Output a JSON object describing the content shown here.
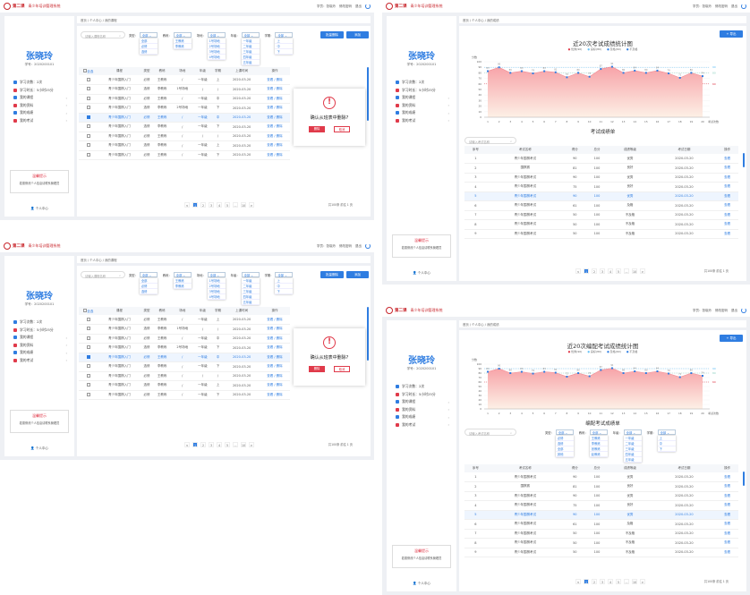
{
  "app": {
    "system_name": "青少年培训管理系统",
    "logo_text": "第二课",
    "header_links": [
      "学员：张晓玲",
      "修改密码",
      "退出"
    ]
  },
  "user": {
    "name": "张晓玲",
    "id_label": "学号：2020200101"
  },
  "sidebar": {
    "items": [
      {
        "label": "学习次数：2次",
        "color": "#2f7de1"
      },
      {
        "label": "学习时长：5小时25分",
        "color": "#e03a4a"
      },
      {
        "label": "我的课程",
        "color": "#2f7de1"
      },
      {
        "label": "我的资料",
        "color": "#e03a4a"
      },
      {
        "label": "我的成绩",
        "color": "#2f7de1"
      },
      {
        "label": "我的考试",
        "color": "#e03a4a"
      }
    ],
    "notice_title": "温馨提示",
    "notice_text": "若需修改个人信息请联系管理员",
    "personal_center": "个人中心"
  },
  "course_page": {
    "breadcrumb": "首页 / 个人中心 / 我的课程",
    "search_placeholder": "请输入课程名称",
    "filters": [
      {
        "label": "类型：",
        "value": "全部",
        "options": [
          "全部",
          "必修",
          "选修"
        ]
      },
      {
        "label": "教练：",
        "value": "全部",
        "options": [
          "王教练",
          "李教练"
        ]
      },
      {
        "label": "场地：",
        "value": "全部",
        "options": [
          "1号场地",
          "2号场地",
          "3号场地",
          "4号场地"
        ]
      },
      {
        "label": "年级：",
        "value": "全部",
        "options": [
          "一年级",
          "二年级",
          "三年级",
          "四年级",
          "五年级"
        ]
      },
      {
        "label": "学期：",
        "value": "全部",
        "options": [
          "上",
          "中",
          "下"
        ]
      }
    ],
    "buttons": [
      "批量删除",
      "添加"
    ],
    "columns": [
      "全选",
      "课程",
      "类型",
      "教练",
      "场地",
      "年级",
      "学期",
      "上课时间",
      "操作"
    ],
    "rows": [
      [
        "青少年围棋入门",
        "必修",
        "王教练",
        "/",
        "一年级",
        "上",
        "2020-03-20",
        "查看 / 删除"
      ],
      [
        "青少年围棋入门",
        "选修",
        "李教练",
        "1号场地",
        "/",
        "/",
        "2020-03-20",
        "查看 / 删除"
      ],
      [
        "青少年围棋入门",
        "必修",
        "王教练",
        "/",
        "一年级",
        "中",
        "2020-03-20",
        "查看 / 删除"
      ],
      [
        "青少年围棋入门",
        "选修",
        "李教练",
        "2号场地",
        "一年级",
        "下",
        "2020-03-20",
        "查看 / 删除"
      ],
      [
        "青少年围棋入门",
        "必修",
        "王教练",
        "/",
        "一年级",
        "中",
        "2020-03-20",
        "查看 / 删除"
      ],
      [
        "青少年围棋入门",
        "选修",
        "李教练",
        "/",
        "一年级",
        "下",
        "2020-03-20",
        "查看 / 删除"
      ],
      [
        "青少年围棋入门",
        "必修",
        "王教练",
        "/",
        "/",
        "/",
        "2020-03-20",
        "查看 / 删除"
      ],
      [
        "青少年围棋入门",
        "选修",
        "李教练",
        "/",
        "一年级",
        "上",
        "2020-03-20",
        "查看 / 删除"
      ],
      [
        "青少年围棋入门",
        "必修",
        "王教练",
        "/",
        "一年级",
        "下",
        "2020-03-20",
        "查看 / 删除"
      ]
    ],
    "selected_row": 4,
    "modal": {
      "question": "确认从班表中删除?",
      "confirm": "删除",
      "cancel": "取消"
    },
    "pager": [
      "<",
      "1",
      "2",
      "3",
      "4",
      "5",
      "...",
      "10",
      ">"
    ],
    "total": "共100条  前往 1 页"
  },
  "score_page": {
    "breadcrumb": "首页 / 个人中心 / 我的成绩",
    "export_button": "+ 导出",
    "table_title": "考试成绩单",
    "table_title_alt": "编配考试成绩单",
    "search_placeholder": "请输入考试名称",
    "columns": [
      "序号",
      "考试名称",
      "得分",
      "总分",
      "成绩等级",
      "考试日期",
      "操作"
    ],
    "rows": [
      [
        "1",
        "青少年围棋考试",
        "90",
        "100",
        "优秀",
        "2020-03-20",
        "查看"
      ],
      [
        "2",
        "围棋赛",
        "81",
        "100",
        "良好",
        "2020-03-20",
        "查看"
      ],
      [
        "3",
        "青少年围棋考试",
        "90",
        "100",
        "优秀",
        "2020-03-20",
        "查看"
      ],
      [
        "4",
        "青少年围棋考试",
        "75",
        "100",
        "良好",
        "2020-03-20",
        "查看"
      ],
      [
        "5",
        "青少年围棋考试",
        "90",
        "100",
        "优秀",
        "2020-03-20",
        "查看"
      ],
      [
        "6",
        "青少年围棋考试",
        "61",
        "100",
        "及格",
        "2020-03-20",
        "查看"
      ],
      [
        "7",
        "青少年围棋考试",
        "50",
        "100",
        "不及格",
        "2020-03-20",
        "查看"
      ],
      [
        "8",
        "青少年围棋考试",
        "50",
        "100",
        "不及格",
        "2020-03-20",
        "查看"
      ],
      [
        "9",
        "青少年围棋考试",
        "50",
        "100",
        "不及格",
        "2020-03-20",
        "查看"
      ]
    ],
    "selected_row": 4,
    "filters": [
      {
        "label": "类型：",
        "value": "全部",
        "options": [
          "必修",
          "选修",
          "全部",
          "其他"
        ]
      },
      {
        "label": "教练：",
        "value": "全部",
        "options": [
          "王教练",
          "李教练",
          "张教练",
          "赵教练"
        ]
      },
      {
        "label": "年级：",
        "value": "全部",
        "options": [
          "一年级",
          "二年级",
          "三年级",
          "四年级",
          "五年级"
        ]
      },
      {
        "label": "学期：",
        "value": "全部",
        "options": [
          "上",
          "中",
          "下"
        ]
      }
    ],
    "pager": [
      "<",
      "1",
      "2",
      "3",
      "4",
      "5",
      "...",
      "10",
      ">"
    ],
    "total": "共100条  前往 1 页"
  },
  "chart_data": {
    "type": "area",
    "title": "近20次考试成绩统计图",
    "title_alt": "近20次编配考试成绩统计图",
    "ylabel": "分数",
    "xlabel": "考试次数",
    "x": [
      1,
      2,
      3,
      4,
      5,
      6,
      7,
      8,
      9,
      10,
      11,
      12,
      13,
      14,
      15,
      16,
      17,
      18,
      19,
      20
    ],
    "values": [
      83,
      90,
      80,
      83,
      79,
      83,
      81,
      72,
      80,
      73,
      87,
      91,
      80,
      84,
      80,
      84,
      79,
      71,
      80,
      74
    ],
    "ylim": [
      0,
      100
    ],
    "legend": [
      "优秀(90)",
      "良好(80)",
      "及格(60)",
      "不及格"
    ],
    "ref_lines": [
      {
        "label": "90",
        "color": "#67c1f5"
      },
      {
        "label": "80",
        "color": "#8fd3c3"
      },
      {
        "label": "60",
        "color": "#e03a4a"
      }
    ],
    "fill_color": "#f7a3a8",
    "point_color": "#2f7de1",
    "grid": true,
    "legend_position": "top"
  }
}
